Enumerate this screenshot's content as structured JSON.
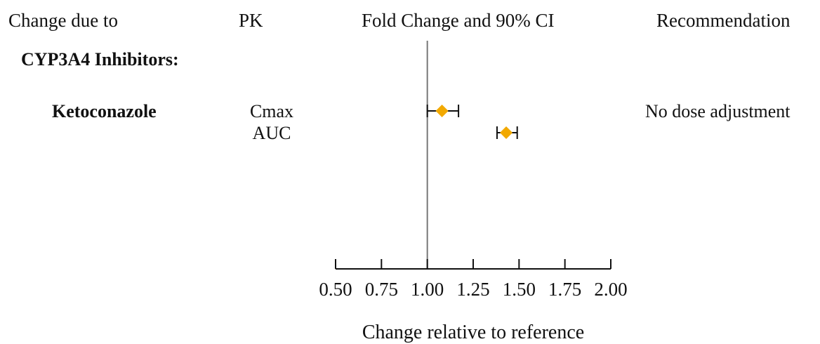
{
  "headers": {
    "change_due_to": "Change due to",
    "pk": "PK",
    "fold_change": "Fold Change and 90% CI",
    "recommendation": "Recommendation"
  },
  "group": {
    "label": "CYP3A4 Inhibitors:"
  },
  "drug": {
    "name": "Ketoconazole",
    "recommendation": "No dose adjustment"
  },
  "chart_data": {
    "type": "forest",
    "x_axis_label": "Change relative to reference",
    "x_range": [
      0.5,
      2.0
    ],
    "reference_line": 1.0,
    "ticks": [
      "0.50",
      "0.75",
      "1.00",
      "1.25",
      "1.50",
      "1.75",
      "2.00"
    ],
    "tick_values": [
      0.5,
      0.75,
      1.0,
      1.25,
      1.5,
      1.75,
      2.0
    ],
    "marker_color": "#F2A900",
    "rows": [
      {
        "drug": "Ketoconazole",
        "pk": "Cmax",
        "estimate": 1.08,
        "ci_low": 1.0,
        "ci_high": 1.17
      },
      {
        "drug": "Ketoconazole",
        "pk": "AUC",
        "estimate": 1.43,
        "ci_low": 1.38,
        "ci_high": 1.49
      }
    ]
  }
}
